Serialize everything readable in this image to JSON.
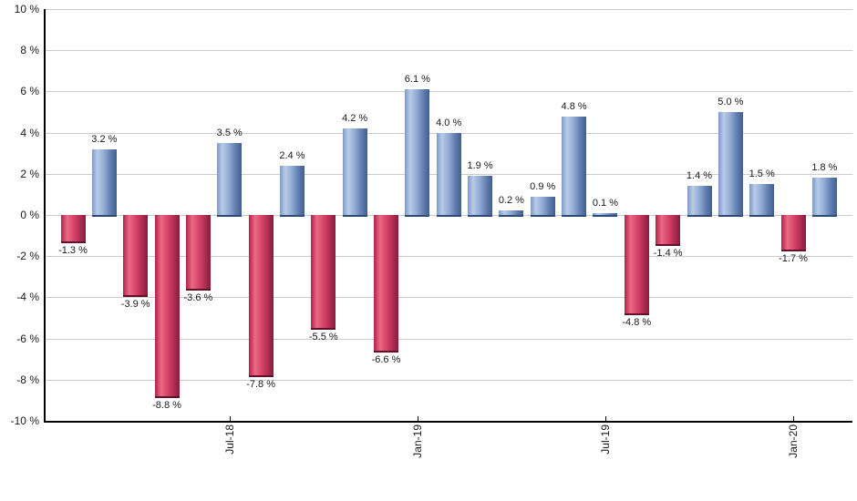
{
  "chart_data": {
    "type": "bar",
    "title": "",
    "xlabel": "",
    "ylabel": "",
    "ylim": [
      -10,
      10
    ],
    "grid": true,
    "legend": null,
    "bars": [
      {
        "value": -1.3,
        "label": "-1.3 %"
      },
      {
        "value": 3.2,
        "label": "3.2 %"
      },
      {
        "value": -3.9,
        "label": "-3.9 %"
      },
      {
        "value": -8.8,
        "label": "-8.8 %"
      },
      {
        "value": -3.6,
        "label": "-3.6 %"
      },
      {
        "value": 3.5,
        "label": "3.5 %"
      },
      {
        "value": -7.8,
        "label": "-7.8 %"
      },
      {
        "value": 2.4,
        "label": "2.4 %"
      },
      {
        "value": -5.5,
        "label": "-5.5 %"
      },
      {
        "value": 4.2,
        "label": "4.2 %"
      },
      {
        "value": -6.6,
        "label": "-6.6 %"
      },
      {
        "value": 6.1,
        "label": "6.1 %"
      },
      {
        "value": 4.0,
        "label": "4.0 %"
      },
      {
        "value": 1.9,
        "label": "1.9 %"
      },
      {
        "value": 0.2,
        "label": "0.2 %"
      },
      {
        "value": 0.9,
        "label": "0.9 %"
      },
      {
        "value": 4.8,
        "label": "4.8 %"
      },
      {
        "value": 0.1,
        "label": "0.1 %"
      },
      {
        "value": -4.8,
        "label": "-4.8 %"
      },
      {
        "value": -1.4,
        "label": "-1.4 %"
      },
      {
        "value": 1.4,
        "label": "1.4 %"
      },
      {
        "value": 5.0,
        "label": "5.0 %"
      },
      {
        "value": 1.5,
        "label": "1.5 %"
      },
      {
        "value": -1.7,
        "label": "-1.7 %"
      },
      {
        "value": 1.8,
        "label": "1.8 %"
      }
    ],
    "x_ticks": [
      {
        "label": "Jul-18",
        "bar_index": 5
      },
      {
        "label": "Jan-19",
        "bar_index": 11
      },
      {
        "label": "Jul-19",
        "bar_index": 17
      },
      {
        "label": "Jan-20",
        "bar_index": 23
      }
    ],
    "y_ticks": [
      {
        "value": 10,
        "label": "10 %"
      },
      {
        "value": 8,
        "label": "8 %"
      },
      {
        "value": 6,
        "label": "6 %"
      },
      {
        "value": 4,
        "label": "4 %"
      },
      {
        "value": 2,
        "label": "2 %"
      },
      {
        "value": 0,
        "label": "0 %"
      },
      {
        "value": -2,
        "label": "-2 %"
      },
      {
        "value": -4,
        "label": "-4 %"
      },
      {
        "value": -6,
        "label": "-6 %"
      },
      {
        "value": -8,
        "label": "-8 %"
      },
      {
        "value": -10,
        "label": "-10 %"
      }
    ],
    "colors": {
      "positive_bar_gradient": [
        "#7e9ac9",
        "#b9cce9",
        "#8fa9d2",
        "#6683b4",
        "#415e8e"
      ],
      "positive_bar_edge": "#2e4a77",
      "negative_bar_gradient": [
        "#b0234a",
        "#ea6a85",
        "#d44065",
        "#871c3e"
      ],
      "negative_bar_edge": "#5f1229",
      "gridline": "#cccccc",
      "axis": "#000000",
      "text": "#1a1a1a",
      "background": "#ffffff"
    }
  }
}
